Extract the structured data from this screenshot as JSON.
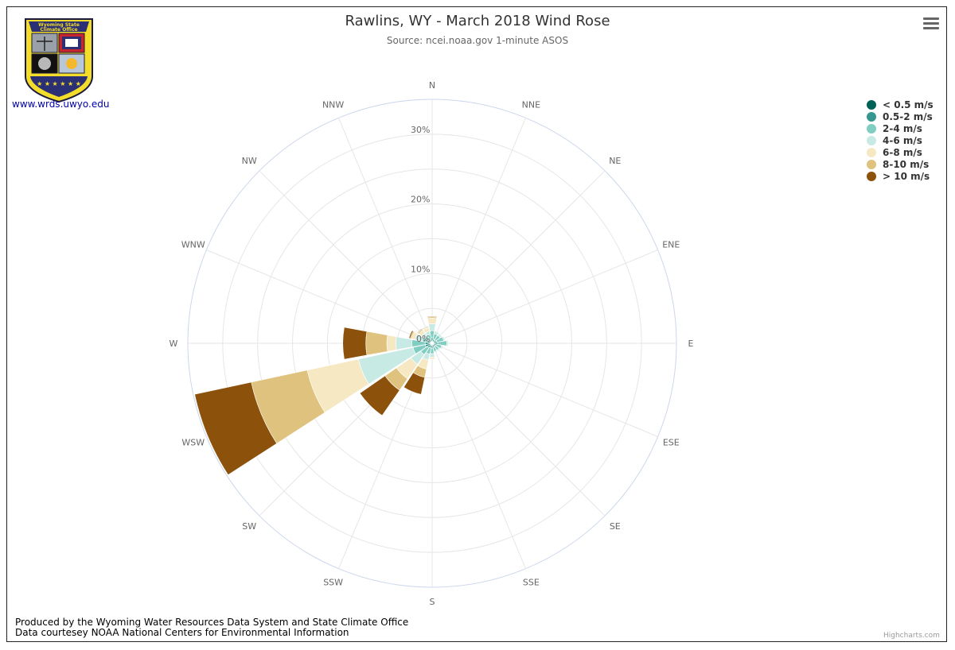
{
  "title": "Rawlins, WY - March 2018 Wind Rose",
  "subtitle": "Source: ncei.noaa.gov 1-minute ASOS",
  "logo": {
    "text_line1": "Wyoming State",
    "text_line2": "Climate Office",
    "colors": {
      "shield_fill": "#f3dd2a",
      "banner": "#2b2f73",
      "border": "#1a1a40"
    }
  },
  "site_link": "www.wrds.uwyo.edu",
  "menu_icon": "hamburger-menu-icon",
  "credits": {
    "line1": "Produced by the Wyoming Water Resources Data System and State Climate Office",
    "line2": "Data courtesey NOAA National Centers for Environmental Information",
    "highcharts": "Highcharts.com"
  },
  "chart_data": {
    "type": "windrose",
    "directions": [
      "N",
      "NNE",
      "NE",
      "ENE",
      "E",
      "ESE",
      "SE",
      "SSE",
      "S",
      "SSW",
      "SW",
      "WSW",
      "W",
      "WNW",
      "NW",
      "NNW"
    ],
    "radial_ticks": [
      "0%",
      "10%",
      "20%",
      "30%"
    ],
    "radial_tick_values": [
      0,
      10,
      20,
      30
    ],
    "rmax": 35,
    "legend_position": "top-right",
    "series": [
      {
        "name": "< 0.5 m/s",
        "color": "#006156",
        "values": [
          0.3,
          0.2,
          0.2,
          0.2,
          0.2,
          0.2,
          0.2,
          0.2,
          0.2,
          0.2,
          0.2,
          0.2,
          0.2,
          0.2,
          0.2,
          0.2
        ]
      },
      {
        "name": "0.5-2 m/s",
        "color": "#35978f",
        "values": [
          0.5,
          0.4,
          0.4,
          0.5,
          0.6,
          0.4,
          0.4,
          0.4,
          0.5,
          0.5,
          0.6,
          0.8,
          0.8,
          0.5,
          0.4,
          0.4
        ]
      },
      {
        "name": "2-4 m/s",
        "color": "#80cdc1",
        "values": [
          1.0,
          0.8,
          0.8,
          1.0,
          1.3,
          0.8,
          0.6,
          0.6,
          0.8,
          0.9,
          1.2,
          1.8,
          1.9,
          0.8,
          0.6,
          0.7
        ]
      },
      {
        "name": "4-6 m/s",
        "color": "#c7eae5",
        "values": [
          1.0,
          0.4,
          0.3,
          0.2,
          0.2,
          0.2,
          0.2,
          0.2,
          0.5,
          0.9,
          1.7,
          8.0,
          2.3,
          1.0,
          0.6,
          0.5
        ]
      },
      {
        "name": "6-8 m/s",
        "color": "#f6e8c3",
        "values": [
          0.8,
          0.1,
          0.0,
          0.0,
          0.0,
          0.0,
          0.0,
          0.0,
          0.2,
          1.3,
          2.5,
          7.5,
          1.3,
          0.5,
          0.5,
          0.5
        ]
      },
      {
        "name": "8-10 m/s",
        "color": "#dfc27d",
        "values": [
          0.2,
          0.0,
          0.0,
          0.0,
          0.0,
          0.0,
          0.0,
          0.0,
          0.1,
          1.2,
          2.0,
          8.2,
          3.0,
          0.2,
          0.2,
          0.1
        ]
      },
      {
        "name": "> 10 m/s",
        "color": "#8c510a",
        "values": [
          0.1,
          0.0,
          0.0,
          0.0,
          0.0,
          0.0,
          0.0,
          0.0,
          0.0,
          2.5,
          4.4,
          8.3,
          3.3,
          0.2,
          0.1,
          0.1
        ]
      }
    ]
  }
}
